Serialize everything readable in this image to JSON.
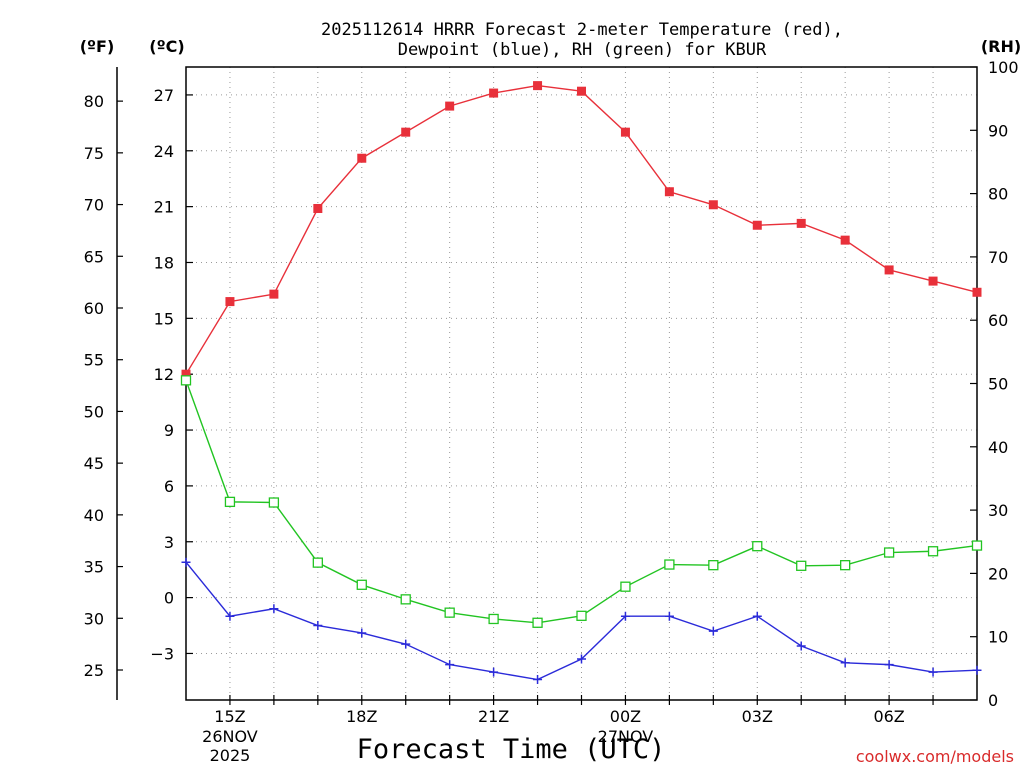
{
  "chart_data": {
    "type": "line",
    "title_line1": "2025112614 HRRR Forecast 2-meter Temperature (red),",
    "title_line2": "Dewpoint (blue), RH (green) for KBUR",
    "xlabel": "Forecast Time (UTC)",
    "credit": "coolwx.com/models",
    "unit_f": "(ºF)",
    "unit_c": "(ºC)",
    "unit_rh": "(RH)",
    "x_hours": [
      14,
      15,
      16,
      17,
      18,
      19,
      20,
      21,
      22,
      23,
      0,
      1,
      2,
      3,
      4,
      5,
      6,
      7,
      8
    ],
    "x_ticks": [
      {
        "index": 1,
        "label": "15Z",
        "sub1": "26NOV",
        "sub2": "2025"
      },
      {
        "index": 4,
        "label": "18Z",
        "sub1": "",
        "sub2": ""
      },
      {
        "index": 7,
        "label": "21Z",
        "sub1": "",
        "sub2": ""
      },
      {
        "index": 10,
        "label": "00Z",
        "sub1": "27NOV",
        "sub2": ""
      },
      {
        "index": 13,
        "label": "03Z",
        "sub1": "",
        "sub2": ""
      },
      {
        "index": 16,
        "label": "06Z",
        "sub1": "",
        "sub2": ""
      }
    ],
    "y_celsius": {
      "lim": [
        -5.5,
        28.5
      ],
      "ticks": [
        -3,
        0,
        3,
        6,
        9,
        12,
        15,
        18,
        21,
        24,
        27
      ]
    },
    "y_fahrenheit": {
      "ticks": [
        25,
        30,
        35,
        40,
        45,
        50,
        55,
        60,
        65,
        70,
        75,
        80
      ]
    },
    "y_rh": {
      "lim": [
        0,
        100
      ],
      "ticks": [
        0,
        10,
        20,
        30,
        40,
        50,
        60,
        70,
        80,
        90,
        100
      ]
    },
    "series": [
      {
        "name": "Temperature",
        "axis": "celsius",
        "color": "#e8303a",
        "marker": "filled-square",
        "values": [
          12.0,
          15.9,
          16.3,
          20.9,
          23.6,
          25.0,
          26.4,
          27.1,
          27.5,
          27.2,
          25.0,
          21.8,
          21.1,
          20.0,
          20.1,
          19.2,
          17.6,
          17.0,
          16.4
        ]
      },
      {
        "name": "Dewpoint",
        "axis": "celsius",
        "color": "#2b2bd9",
        "marker": "plus",
        "values": [
          1.9,
          -1.0,
          -0.6,
          -1.5,
          -1.9,
          -2.5,
          -3.6,
          -4.0,
          -4.4,
          -3.3,
          -1.0,
          -1.0,
          -1.8,
          -1.0,
          -2.6,
          -3.5,
          -3.6,
          -4.0,
          -3.9
        ]
      },
      {
        "name": "Relative Humidity",
        "axis": "rh",
        "color": "#22c422",
        "marker": "open-square",
        "values": [
          50.5,
          31.3,
          31.2,
          21.7,
          18.2,
          15.9,
          13.8,
          12.8,
          12.2,
          13.3,
          17.9,
          21.4,
          21.3,
          24.3,
          21.2,
          21.3,
          23.3,
          23.5,
          24.4
        ]
      }
    ]
  }
}
